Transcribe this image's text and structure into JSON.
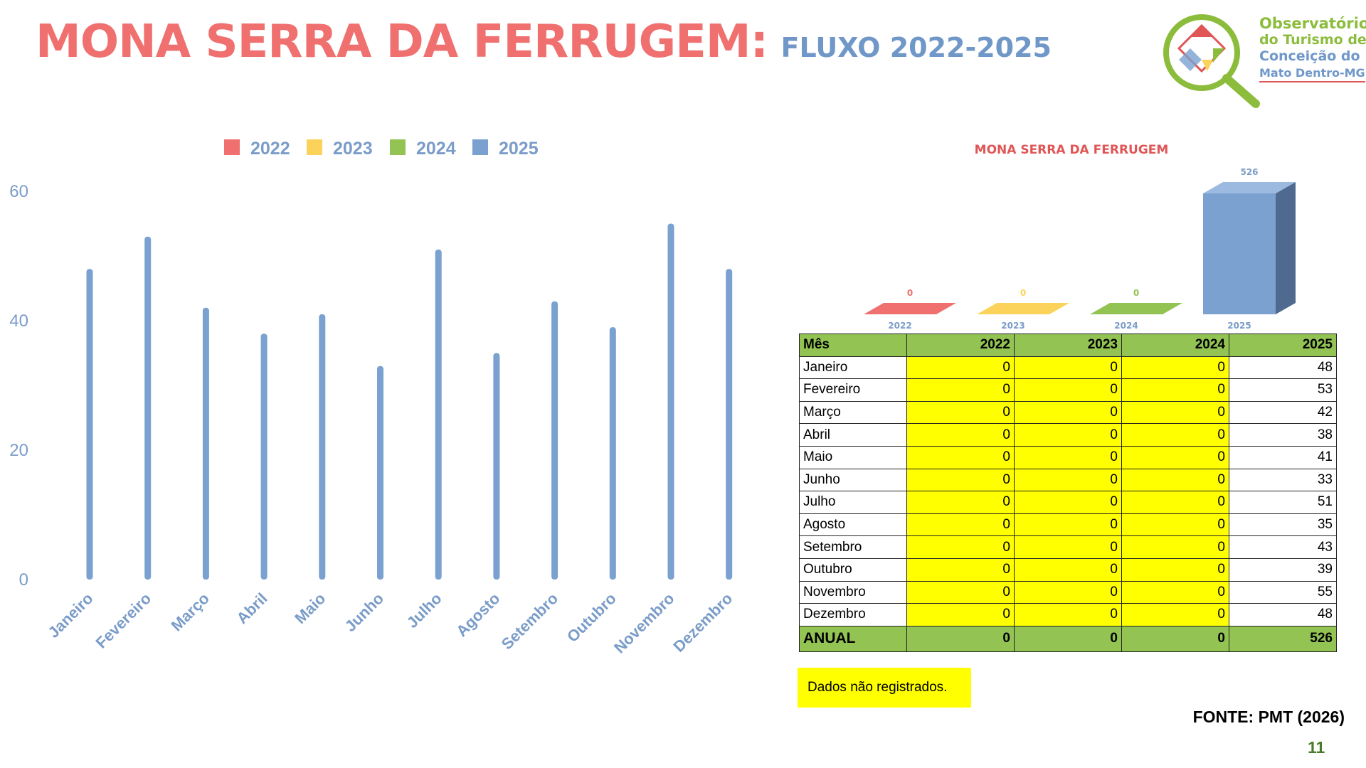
{
  "header": {
    "title": "MONA SERRA DA FERRUGEM:",
    "subtitle": "FLUXO 2022-2025"
  },
  "logo": {
    "line1": "Observatório",
    "line2": "do Turismo de",
    "line3": "Conceição do",
    "line4": "Mato Dentro-MG"
  },
  "chart_data": [
    {
      "type": "bar",
      "title": "",
      "categories": [
        "Janeiro",
        "Fevereiro",
        "Março",
        "Abril",
        "Maio",
        "Junho",
        "Julho",
        "Agosto",
        "Setembro",
        "Outubro",
        "Novembro",
        "Dezembro"
      ],
      "series": [
        {
          "name": "2022",
          "color": "#f07070",
          "values": [
            0,
            0,
            0,
            0,
            0,
            0,
            0,
            0,
            0,
            0,
            0,
            0
          ]
        },
        {
          "name": "2023",
          "color": "#fcd35a",
          "values": [
            0,
            0,
            0,
            0,
            0,
            0,
            0,
            0,
            0,
            0,
            0,
            0
          ]
        },
        {
          "name": "2024",
          "color": "#92c353",
          "values": [
            0,
            0,
            0,
            0,
            0,
            0,
            0,
            0,
            0,
            0,
            0,
            0
          ]
        },
        {
          "name": "2025",
          "color": "#7aa1cf",
          "values": [
            48,
            53,
            42,
            38,
            41,
            33,
            51,
            35,
            43,
            39,
            55,
            48
          ]
        }
      ],
      "yticks": [
        0,
        20,
        40,
        60
      ],
      "ylim": [
        0,
        60
      ],
      "grid": false,
      "legend": "top"
    },
    {
      "type": "bar",
      "title": "MONA SERRA DA FERRUGEM",
      "categories": [
        "2022",
        "2023",
        "2024",
        "2025"
      ],
      "values": [
        0,
        0,
        0,
        526
      ],
      "colors": [
        "#f07070",
        "#fcd35a",
        "#92c353",
        "#7aa1cf"
      ],
      "data_labels": [
        "0",
        "0",
        "0",
        "526"
      ],
      "legend": "none"
    }
  ],
  "table": {
    "headers": [
      "Mês",
      "2022",
      "2023",
      "2024",
      "2025"
    ],
    "rows": [
      [
        "Janeiro",
        "0",
        "0",
        "0",
        "48"
      ],
      [
        "Fevereiro",
        "0",
        "0",
        "0",
        "53"
      ],
      [
        "Março",
        "0",
        "0",
        "0",
        "42"
      ],
      [
        "Abril",
        "0",
        "0",
        "0",
        "38"
      ],
      [
        "Maio",
        "0",
        "0",
        "0",
        "41"
      ],
      [
        "Junho",
        "0",
        "0",
        "0",
        "33"
      ],
      [
        "Julho",
        "0",
        "0",
        "0",
        "51"
      ],
      [
        "Agosto",
        "0",
        "0",
        "0",
        "35"
      ],
      [
        "Setembro",
        "0",
        "0",
        "0",
        "43"
      ],
      [
        "Outubro",
        "0",
        "0",
        "0",
        "39"
      ],
      [
        "Novembro",
        "0",
        "0",
        "0",
        "55"
      ],
      [
        "Dezembro",
        "0",
        "0",
        "0",
        "48"
      ]
    ],
    "annual": [
      "ANUAL",
      "0",
      "0",
      "0",
      "526"
    ]
  },
  "note": "Dados não registrados.",
  "source": "FONTE: PMT (2026)",
  "page_number": "11"
}
